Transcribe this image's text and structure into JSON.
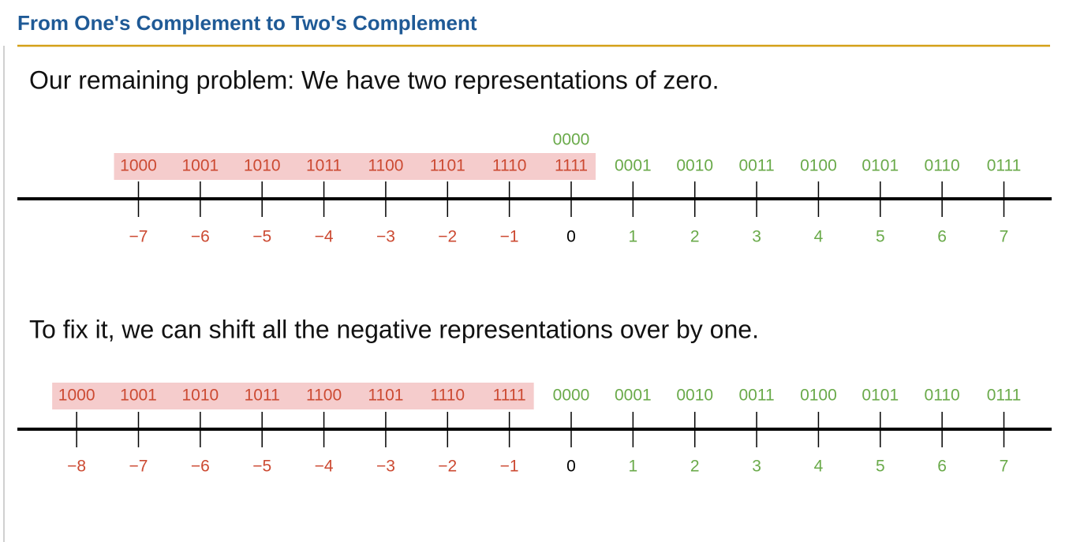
{
  "header": {
    "title": "From One's Complement to Two's Complement"
  },
  "sections": [
    {
      "text": "Our remaining problem: We have two representations of zero.",
      "zero_alt": "0000",
      "ticks": [
        {
          "bits": "1000",
          "number": "−7"
        },
        {
          "bits": "1001",
          "number": "−6"
        },
        {
          "bits": "1010",
          "number": "−5"
        },
        {
          "bits": "1011",
          "number": "−4"
        },
        {
          "bits": "1100",
          "number": "−3"
        },
        {
          "bits": "1101",
          "number": "−2"
        },
        {
          "bits": "1110",
          "number": "−1"
        },
        {
          "bits": "1111",
          "number": "0"
        },
        {
          "bits": "0001",
          "number": "1"
        },
        {
          "bits": "0010",
          "number": "2"
        },
        {
          "bits": "0011",
          "number": "3"
        },
        {
          "bits": "0100",
          "number": "4"
        },
        {
          "bits": "0101",
          "number": "5"
        },
        {
          "bits": "0110",
          "number": "6"
        },
        {
          "bits": "0111",
          "number": "7"
        }
      ]
    },
    {
      "text": "To fix it, we can shift all the negative representations over by one.",
      "ticks": [
        {
          "bits": "1000",
          "number": "−8"
        },
        {
          "bits": "1001",
          "number": "−7"
        },
        {
          "bits": "1010",
          "number": "−6"
        },
        {
          "bits": "1011",
          "number": "−5"
        },
        {
          "bits": "1100",
          "number": "−4"
        },
        {
          "bits": "1101",
          "number": "−3"
        },
        {
          "bits": "1110",
          "number": "−2"
        },
        {
          "bits": "1111",
          "number": "−1"
        },
        {
          "bits": "0000",
          "number": "0"
        },
        {
          "bits": "0001",
          "number": "1"
        },
        {
          "bits": "0010",
          "number": "2"
        },
        {
          "bits": "0011",
          "number": "3"
        },
        {
          "bits": "0100",
          "number": "4"
        },
        {
          "bits": "0101",
          "number": "5"
        },
        {
          "bits": "0110",
          "number": "6"
        },
        {
          "bits": "0111",
          "number": "7"
        }
      ]
    }
  ]
}
